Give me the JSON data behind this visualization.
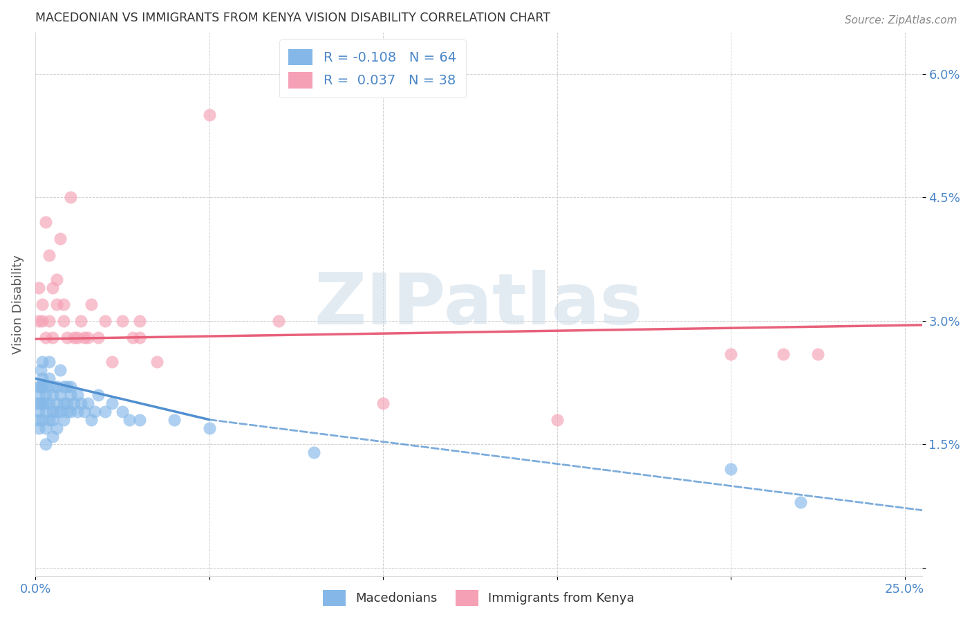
{
  "title": "MACEDONIAN VS IMMIGRANTS FROM KENYA VISION DISABILITY CORRELATION CHART",
  "source": "Source: ZipAtlas.com",
  "ylabel": "Vision Disability",
  "xlim": [
    0.0,
    0.255
  ],
  "ylim": [
    -0.001,
    0.065
  ],
  "xticks": [
    0.0,
    0.05,
    0.1,
    0.15,
    0.2,
    0.25
  ],
  "xticklabels": [
    "0.0%",
    "",
    "",
    "",
    "",
    "25.0%"
  ],
  "yticks": [
    0.0,
    0.015,
    0.03,
    0.045,
    0.06
  ],
  "yticklabels": [
    "",
    "1.5%",
    "3.0%",
    "4.5%",
    "6.0%"
  ],
  "macedonian_R": -0.108,
  "macedonian_N": 64,
  "kenya_R": 0.037,
  "kenya_N": 38,
  "blue_color": "#85b8e8",
  "pink_color": "#f5a0b5",
  "blue_line_color": "#5090d0",
  "pink_line_color": "#e8607a",
  "watermark_color": "#cddce8",
  "legend_blue_label": "Macedonians",
  "legend_pink_label": "Immigrants from Kenya",
  "blue_line_start_y": 0.023,
  "blue_line_end_solid_x": 0.05,
  "blue_line_end_solid_y": 0.018,
  "blue_line_end_dash_x": 0.255,
  "blue_line_end_dash_y": 0.007,
  "pink_line_start_y": 0.0278,
  "pink_line_end_y": 0.0295,
  "macedonian_x": [
    0.0005,
    0.0008,
    0.001,
    0.001,
    0.001,
    0.0012,
    0.0013,
    0.0015,
    0.0015,
    0.002,
    0.002,
    0.002,
    0.002,
    0.002,
    0.003,
    0.003,
    0.003,
    0.003,
    0.003,
    0.003,
    0.004,
    0.004,
    0.004,
    0.004,
    0.005,
    0.005,
    0.005,
    0.005,
    0.005,
    0.006,
    0.006,
    0.006,
    0.006,
    0.007,
    0.007,
    0.007,
    0.008,
    0.008,
    0.008,
    0.009,
    0.009,
    0.009,
    0.01,
    0.01,
    0.01,
    0.011,
    0.012,
    0.012,
    0.013,
    0.014,
    0.015,
    0.016,
    0.017,
    0.018,
    0.02,
    0.022,
    0.025,
    0.027,
    0.03,
    0.04,
    0.05,
    0.08,
    0.2,
    0.22
  ],
  "macedonian_y": [
    0.02,
    0.018,
    0.022,
    0.019,
    0.017,
    0.021,
    0.02,
    0.024,
    0.022,
    0.023,
    0.02,
    0.018,
    0.022,
    0.025,
    0.02,
    0.022,
    0.019,
    0.017,
    0.015,
    0.021,
    0.02,
    0.023,
    0.018,
    0.025,
    0.019,
    0.022,
    0.018,
    0.016,
    0.021,
    0.02,
    0.022,
    0.017,
    0.019,
    0.024,
    0.021,
    0.019,
    0.02,
    0.022,
    0.018,
    0.019,
    0.022,
    0.02,
    0.021,
    0.019,
    0.022,
    0.02,
    0.021,
    0.019,
    0.02,
    0.019,
    0.02,
    0.018,
    0.019,
    0.021,
    0.019,
    0.02,
    0.019,
    0.018,
    0.018,
    0.018,
    0.017,
    0.014,
    0.012,
    0.008
  ],
  "kenya_x": [
    0.001,
    0.001,
    0.002,
    0.002,
    0.003,
    0.003,
    0.004,
    0.004,
    0.005,
    0.005,
    0.006,
    0.006,
    0.007,
    0.008,
    0.008,
    0.009,
    0.01,
    0.011,
    0.012,
    0.013,
    0.014,
    0.015,
    0.016,
    0.018,
    0.02,
    0.022,
    0.025,
    0.028,
    0.03,
    0.035,
    0.05,
    0.07,
    0.1,
    0.15,
    0.2,
    0.215,
    0.225,
    0.03
  ],
  "kenya_y": [
    0.03,
    0.034,
    0.03,
    0.032,
    0.028,
    0.042,
    0.03,
    0.038,
    0.034,
    0.028,
    0.032,
    0.035,
    0.04,
    0.03,
    0.032,
    0.028,
    0.045,
    0.028,
    0.028,
    0.03,
    0.028,
    0.028,
    0.032,
    0.028,
    0.03,
    0.025,
    0.03,
    0.028,
    0.03,
    0.025,
    0.055,
    0.03,
    0.02,
    0.018,
    0.026,
    0.026,
    0.026,
    0.028
  ]
}
